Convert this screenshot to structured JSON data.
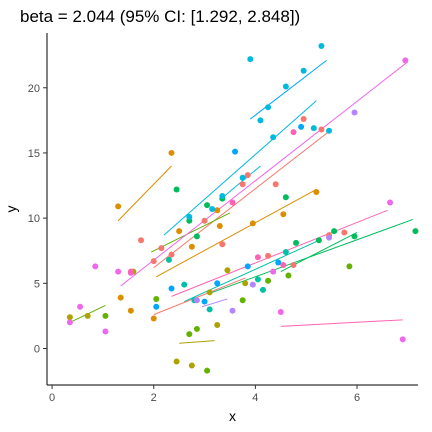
{
  "chart_data": {
    "type": "scatter",
    "title": "beta = 2.044 (95% CI: [1.292, 2.848])",
    "xlabel": "x",
    "ylabel": "y",
    "xlim": [
      -0.1,
      7.2
    ],
    "ylim": [
      -2.8,
      24.2
    ],
    "x_ticks": [
      0,
      2,
      4,
      6
    ],
    "y_ticks": [
      0,
      5,
      10,
      15,
      20
    ],
    "grid": false,
    "legend": "none",
    "groups": [
      {
        "color": "#F8766D",
        "points": [
          [
            1.75,
            8.3
          ],
          [
            2.0,
            6.7
          ],
          [
            2.15,
            7.7
          ],
          [
            2.35,
            7.2
          ],
          [
            3.0,
            9.8
          ],
          [
            3.35,
            8.0
          ],
          [
            3.75,
            12.6
          ],
          [
            3.85,
            13.3
          ],
          [
            4.25,
            7.1
          ],
          [
            4.4,
            12.6
          ],
          [
            4.75,
            6.4
          ],
          [
            4.95,
            17.6
          ],
          [
            5.3,
            16.8
          ],
          [
            5.45,
            8.7
          ],
          [
            5.75,
            8.9
          ]
        ],
        "line": [
          [
            2.0,
            6.2
          ],
          [
            5.5,
            16.8
          ]
        ]
      },
      {
        "color": "#DB8E00",
        "points": [
          [
            1.3,
            10.9
          ],
          [
            1.35,
            3.9
          ],
          [
            1.55,
            2.9
          ],
          [
            2.0,
            2.3
          ],
          [
            2.35,
            15.0
          ],
          [
            2.5,
            9.0
          ],
          [
            2.75,
            7.8
          ],
          [
            3.25,
            10.6
          ],
          [
            3.3,
            9.4
          ],
          [
            3.95,
            9.6
          ],
          [
            4.55,
            10.3
          ],
          [
            5.2,
            12.0
          ]
        ],
        "line": [
          [
            2.05,
            5.5
          ],
          [
            5.2,
            12.2
          ]
        ]
      },
      {
        "color": "#AEA200",
        "points": [
          [
            0.35,
            2.4
          ],
          [
            0.7,
            2.5
          ],
          [
            1.6,
            5.9
          ],
          [
            2.45,
            -1.0
          ],
          [
            2.75,
            -1.3
          ],
          [
            3.1,
            4.3
          ],
          [
            3.25,
            1.8
          ],
          [
            3.45,
            6.0
          ],
          [
            3.8,
            5.0
          ]
        ],
        "line": [
          [
            2.5,
            0.4
          ],
          [
            3.2,
            0.6
          ]
        ]
      },
      {
        "color": "#64B200",
        "points": [
          [
            1.05,
            2.5
          ],
          [
            2.05,
            3.8
          ],
          [
            2.7,
            1.1
          ],
          [
            2.85,
            1.5
          ],
          [
            3.05,
            -1.7
          ],
          [
            3.75,
            3.7
          ],
          [
            4.25,
            5.2
          ],
          [
            4.65,
            5.6
          ],
          [
            5.85,
            6.3
          ]
        ],
        "line": [
          [
            1.95,
            7.4
          ],
          [
            3.5,
            10.4
          ]
        ]
      },
      {
        "color": "#00BD5C",
        "points": [
          [
            2.45,
            12.2
          ],
          [
            2.7,
            9.8
          ],
          [
            2.85,
            8.6
          ],
          [
            3.05,
            11.0
          ],
          [
            3.35,
            11.5
          ],
          [
            4.6,
            11.6
          ],
          [
            4.8,
            8.1
          ],
          [
            5.25,
            8.3
          ],
          [
            5.55,
            9.0
          ],
          [
            5.95,
            8.6
          ],
          [
            7.15,
            9.0
          ]
        ],
        "line": [
          [
            3.15,
            4.3
          ],
          [
            7.1,
            9.9
          ]
        ]
      },
      {
        "color": "#00C1A7",
        "points": [
          [
            2.3,
            6.8
          ],
          [
            2.6,
            4.9
          ],
          [
            2.8,
            3.7
          ],
          [
            3.1,
            3.0
          ],
          [
            4.05,
            5.3
          ],
          [
            4.15,
            4.5
          ],
          [
            4.6,
            7.4
          ]
        ],
        "line": [
          [
            2.6,
            3.6
          ],
          [
            5.2,
            8.2
          ]
        ]
      },
      {
        "color": "#00BADE",
        "points": [
          [
            2.7,
            10.1
          ],
          [
            3.15,
            10.7
          ],
          [
            3.35,
            11.7
          ],
          [
            3.75,
            13.1
          ],
          [
            3.9,
            22.2
          ],
          [
            4.1,
            17.5
          ],
          [
            4.25,
            18.5
          ],
          [
            4.35,
            16.2
          ],
          [
            4.6,
            20.1
          ],
          [
            4.95,
            21.3
          ],
          [
            5.15,
            16.9
          ],
          [
            5.3,
            23.2
          ],
          [
            5.45,
            16.7
          ]
        ],
        "line": [
          [
            2.2,
            8.7
          ],
          [
            5.2,
            19.0
          ]
        ]
      },
      {
        "color": "#00A6FF",
        "points": [
          [
            2.05,
            3.2
          ],
          [
            2.35,
            4.6
          ],
          [
            3.0,
            3.6
          ],
          [
            3.25,
            5.0
          ],
          [
            3.6,
            15.1
          ],
          [
            3.85,
            6.3
          ],
          [
            4.45,
            6.6
          ],
          [
            4.9,
            17.0
          ]
        ],
        "line": [
          [
            3.9,
            17.6
          ],
          [
            5.4,
            22.1
          ]
        ]
      },
      {
        "color": "#B385FF",
        "points": [
          [
            2.85,
            3.7
          ],
          [
            3.55,
            2.9
          ],
          [
            3.95,
            4.9
          ],
          [
            5.45,
            8.5
          ],
          [
            5.95,
            18.1
          ]
        ],
        "line": [
          [
            2.95,
            3.2
          ],
          [
            3.45,
            3.8
          ]
        ]
      },
      {
        "color": "#EF67EB",
        "points": [
          [
            0.35,
            2.0
          ],
          [
            0.55,
            3.2
          ],
          [
            0.85,
            6.3
          ],
          [
            1.05,
            1.3
          ],
          [
            1.3,
            5.9
          ],
          [
            1.55,
            5.8
          ],
          [
            4.35,
            5.9
          ],
          [
            4.5,
            2.8
          ],
          [
            6.65,
            11.2
          ],
          [
            6.9,
            0.7
          ],
          [
            6.95,
            22.1
          ]
        ],
        "line": [
          [
            1.35,
            4.8
          ],
          [
            7.0,
            22.0
          ]
        ]
      },
      {
        "color": "#FF63B6",
        "points": [
          [
            1.55,
            5.9
          ],
          [
            3.55,
            11.2
          ],
          [
            4.05,
            7.0
          ],
          [
            4.55,
            6.4
          ],
          [
            4.75,
            16.6
          ]
        ],
        "line": [
          [
            4.5,
            1.7
          ],
          [
            6.9,
            2.2
          ]
        ]
      }
    ],
    "extra_lines": [
      {
        "color": "#DB8E00",
        "line": [
          [
            1.3,
            9.8
          ],
          [
            2.35,
            14.0
          ]
        ]
      },
      {
        "color": "#64B200",
        "line": [
          [
            0.3,
            1.9
          ],
          [
            1.05,
            3.3
          ]
        ]
      },
      {
        "color": "#00BADE",
        "line": [
          [
            3.3,
            11.4
          ],
          [
            4.1,
            14.0
          ]
        ]
      },
      {
        "color": "#00BD5C",
        "line": [
          [
            4.5,
            5.9
          ],
          [
            6.0,
            8.9
          ]
        ]
      },
      {
        "color": "#FF63B6",
        "line": [
          [
            2.35,
            4.0
          ],
          [
            6.6,
            10.6
          ]
        ]
      },
      {
        "color": "#F8766D",
        "line": [
          [
            2.0,
            2.6
          ],
          [
            3.8,
            5.4
          ]
        ]
      }
    ]
  }
}
